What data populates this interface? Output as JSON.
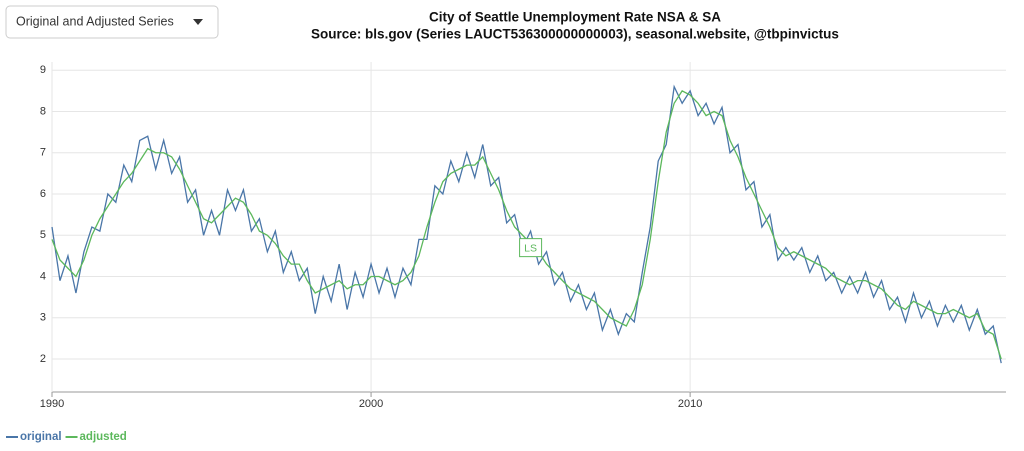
{
  "controls": {
    "dropdown": "Original and Adjusted Series"
  },
  "chart_data": {
    "type": "line",
    "title": "City of Seattle Unemployment Rate NSA & SA",
    "subtitle": "Source: bls.gov (Series LAUCT536300000000003), seasonal.website, @tbpinvictus",
    "x": [
      1990,
      1990.25,
      1990.5,
      1990.75,
      1991,
      1991.25,
      1991.5,
      1991.75,
      1992,
      1992.25,
      1992.5,
      1992.75,
      1993,
      1993.25,
      1993.5,
      1993.75,
      1994,
      1994.25,
      1994.5,
      1994.75,
      1995,
      1995.25,
      1995.5,
      1995.75,
      1996,
      1996.25,
      1996.5,
      1996.75,
      1997,
      1997.25,
      1997.5,
      1997.75,
      1998,
      1998.25,
      1998.5,
      1998.75,
      1999,
      1999.25,
      1999.5,
      1999.75,
      2000,
      2000.25,
      2000.5,
      2000.75,
      2001,
      2001.25,
      2001.5,
      2001.75,
      2002,
      2002.25,
      2002.5,
      2002.75,
      2003,
      2003.25,
      2003.5,
      2003.75,
      2004,
      2004.25,
      2004.5,
      2004.75,
      2005,
      2005.25,
      2005.5,
      2005.75,
      2006,
      2006.25,
      2006.5,
      2006.75,
      2007,
      2007.25,
      2007.5,
      2007.75,
      2008,
      2008.25,
      2008.5,
      2008.75,
      2009,
      2009.25,
      2009.5,
      2009.75,
      2010,
      2010.25,
      2010.5,
      2010.75,
      2011,
      2011.25,
      2011.5,
      2011.75,
      2012,
      2012.25,
      2012.5,
      2012.75,
      2013,
      2013.25,
      2013.5,
      2013.75,
      2014,
      2014.25,
      2014.5,
      2014.75,
      2015,
      2015.25,
      2015.5,
      2015.75,
      2016,
      2016.25,
      2016.5,
      2016.75,
      2017,
      2017.25,
      2017.5,
      2017.75,
      2018,
      2018.25,
      2018.5,
      2018.75,
      2019,
      2019.25,
      2019.5,
      2019.75
    ],
    "series": [
      {
        "name": "original",
        "color": "#4a76a8",
        "values": [
          5.2,
          3.9,
          4.5,
          3.6,
          4.6,
          5.2,
          5.1,
          6.0,
          5.8,
          6.7,
          6.3,
          7.3,
          7.4,
          6.6,
          7.3,
          6.5,
          6.9,
          5.8,
          6.1,
          5.0,
          5.6,
          5.0,
          6.1,
          5.6,
          6.1,
          5.1,
          5.4,
          4.6,
          5.1,
          4.1,
          4.6,
          3.9,
          4.2,
          3.1,
          4.0,
          3.4,
          4.3,
          3.2,
          4.1,
          3.5,
          4.3,
          3.6,
          4.2,
          3.5,
          4.2,
          3.8,
          4.9,
          4.9,
          6.2,
          6.0,
          6.8,
          6.3,
          7.0,
          6.4,
          7.2,
          6.2,
          6.4,
          5.3,
          5.5,
          4.7,
          5.1,
          4.3,
          4.6,
          3.8,
          4.1,
          3.4,
          3.8,
          3.2,
          3.6,
          2.7,
          3.2,
          2.6,
          3.1,
          2.9,
          4.1,
          5.2,
          6.8,
          7.2,
          8.6,
          8.2,
          8.5,
          7.9,
          8.2,
          7.7,
          8.1,
          7.0,
          7.2,
          6.1,
          6.3,
          5.2,
          5.5,
          4.4,
          4.7,
          4.4,
          4.7,
          4.1,
          4.5,
          3.9,
          4.1,
          3.6,
          4.0,
          3.6,
          4.1,
          3.5,
          3.9,
          3.2,
          3.5,
          2.9,
          3.6,
          3.0,
          3.4,
          2.8,
          3.3,
          2.9,
          3.3,
          2.7,
          3.2,
          2.6,
          2.8,
          1.9
        ]
      },
      {
        "name": "adjusted",
        "color": "#5cb85c",
        "values": [
          4.9,
          4.4,
          4.2,
          4.0,
          4.4,
          5.0,
          5.4,
          5.7,
          6.0,
          6.3,
          6.5,
          6.8,
          7.1,
          7.0,
          7.0,
          6.9,
          6.6,
          6.2,
          5.8,
          5.4,
          5.3,
          5.5,
          5.7,
          5.9,
          5.8,
          5.5,
          5.1,
          5.0,
          4.8,
          4.5,
          4.3,
          4.3,
          3.9,
          3.6,
          3.7,
          3.8,
          3.9,
          3.7,
          3.8,
          3.8,
          4.0,
          4.0,
          3.9,
          3.8,
          3.9,
          4.1,
          4.5,
          5.2,
          5.8,
          6.3,
          6.5,
          6.6,
          6.7,
          6.7,
          6.9,
          6.5,
          6.1,
          5.6,
          5.2,
          5.0,
          4.8,
          4.6,
          4.3,
          4.1,
          3.9,
          3.7,
          3.6,
          3.5,
          3.4,
          3.2,
          3.0,
          2.9,
          2.8,
          3.2,
          3.8,
          4.9,
          6.3,
          7.5,
          8.2,
          8.5,
          8.4,
          8.2,
          7.9,
          8.0,
          7.9,
          7.3,
          6.9,
          6.4,
          6.0,
          5.6,
          5.2,
          4.7,
          4.5,
          4.6,
          4.5,
          4.4,
          4.3,
          4.2,
          4.0,
          3.9,
          3.8,
          3.9,
          3.9,
          3.8,
          3.7,
          3.5,
          3.3,
          3.2,
          3.4,
          3.3,
          3.2,
          3.1,
          3.1,
          3.2,
          3.1,
          3.0,
          3.1,
          2.7,
          2.6,
          2.0
        ]
      }
    ],
    "annotations": [
      {
        "text": "LS",
        "x": 2005,
        "y": 4.7
      }
    ],
    "xlim": [
      1990,
      2019.9
    ],
    "xticks": [
      1990,
      2000,
      2010
    ],
    "ylim": [
      1.2,
      9.2
    ],
    "yticks": [
      2,
      3,
      4,
      5,
      6,
      7,
      8,
      9
    ],
    "grid": true
  }
}
